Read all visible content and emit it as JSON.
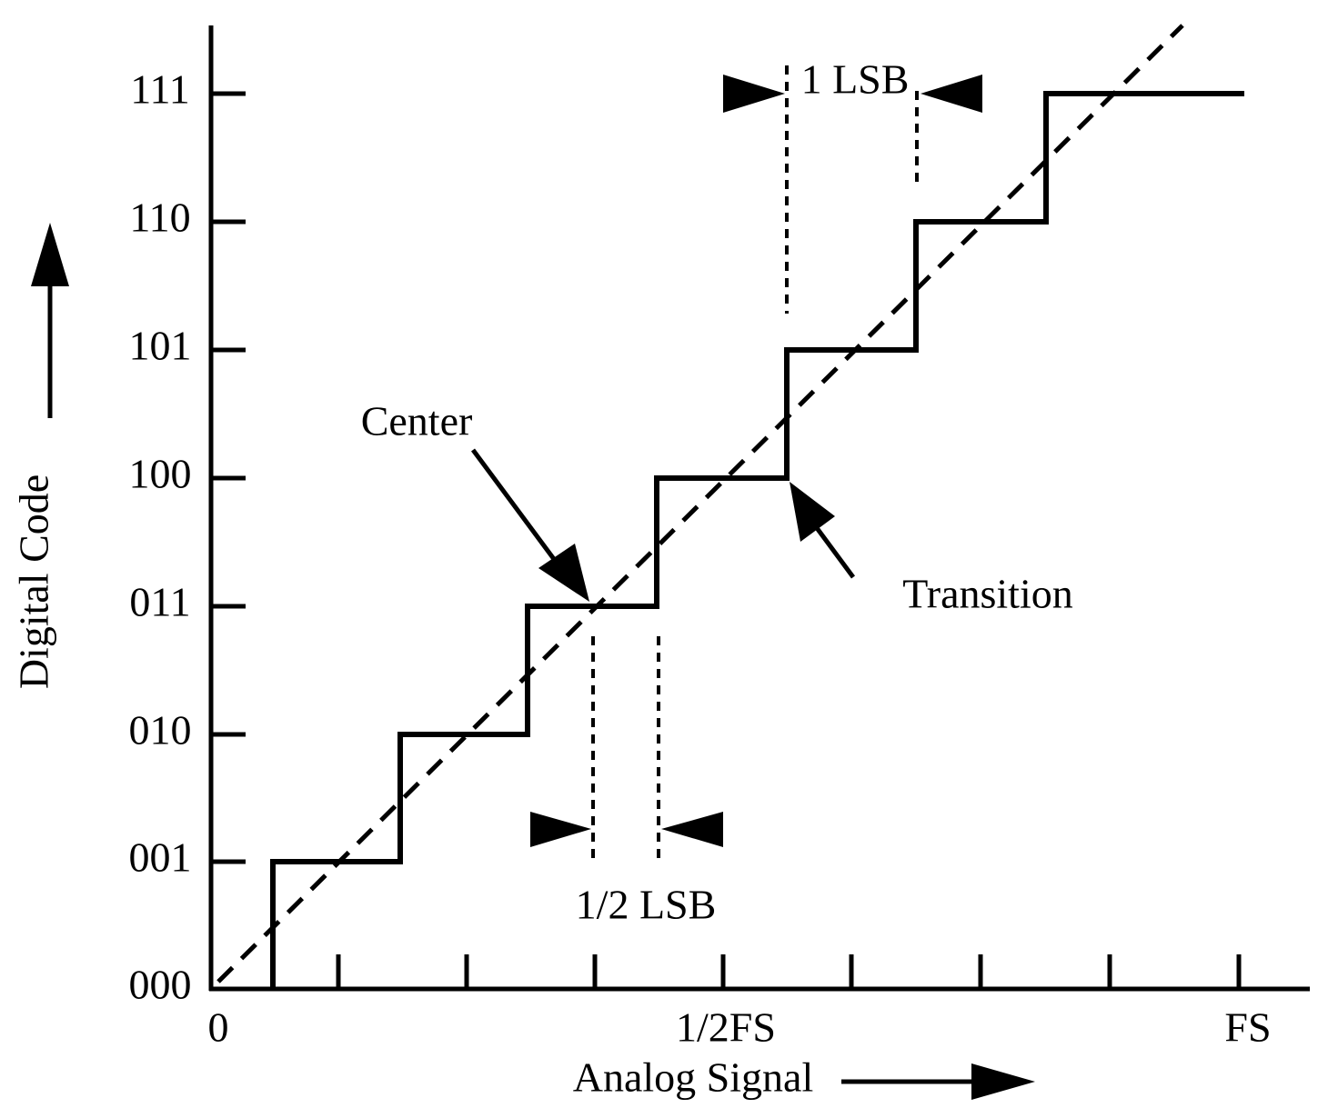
{
  "y_axis": {
    "label": "Digital Code",
    "ticks": [
      "111",
      "110",
      "101",
      "100",
      "011",
      "010",
      "001",
      "000"
    ]
  },
  "x_axis": {
    "label": "Analog Signal",
    "ticks": [
      "0",
      "1/2FS",
      "FS"
    ]
  },
  "annotations": {
    "center": "Center",
    "transition": "Transition",
    "one_lsb": "1 LSB",
    "half_lsb": "1/2 LSB"
  }
}
